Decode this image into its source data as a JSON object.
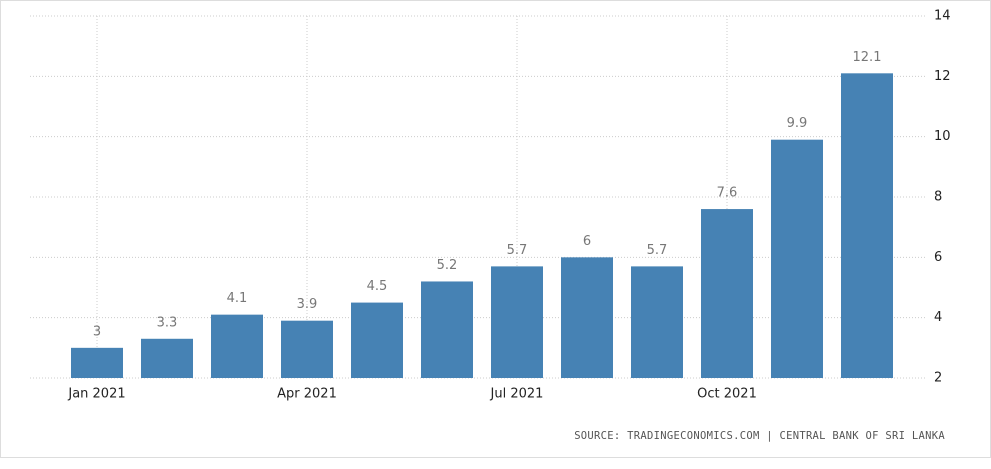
{
  "chart_data": {
    "type": "bar",
    "categories": [
      "Jan 2021",
      null,
      null,
      "Apr 2021",
      null,
      null,
      "Jul 2021",
      null,
      null,
      "Oct 2021",
      null,
      null
    ],
    "values": [
      3,
      3.3,
      4.1,
      3.9,
      4.5,
      5.2,
      5.7,
      6,
      5.7,
      7.6,
      9.9,
      12.1
    ],
    "color": "#4682b4",
    "ylim": [
      2,
      14
    ],
    "yticks": [
      2,
      4,
      6,
      8,
      10,
      12,
      14
    ],
    "grid": true,
    "value_labels_shown": true,
    "source": "SOURCE: TRADINGECONOMICS.COM | CENTRAL BANK OF SRI LANKA"
  }
}
